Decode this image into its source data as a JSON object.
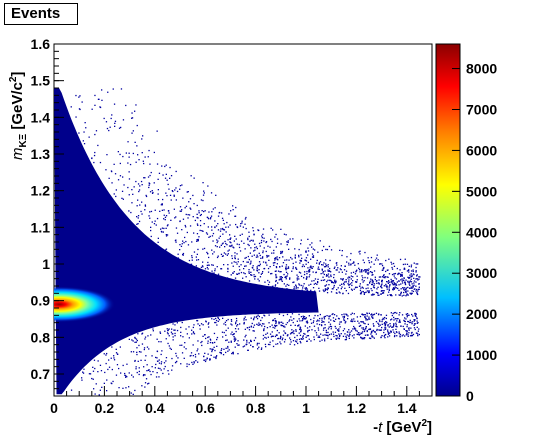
{
  "chart_data": {
    "type": "heatmap",
    "title": "Events",
    "xlabel": "-t [GeV^2]",
    "ylabel": "m_KΞ [GeV/c^2]",
    "xlim": [
      0,
      1.5
    ],
    "ylim": [
      0.64,
      1.6
    ],
    "x_ticks": [
      "0",
      "0.2",
      "0.4",
      "0.6",
      "0.8",
      "1",
      "1.2",
      "1.4"
    ],
    "x_tick_values": [
      0,
      0.2,
      0.4,
      0.6,
      0.8,
      1.0,
      1.2,
      1.4
    ],
    "y_ticks": [
      "0.7",
      "0.8",
      "0.9",
      "1",
      "1.1",
      "1.2",
      "1.3",
      "1.4",
      "1.5",
      "1.6"
    ],
    "y_tick_values": [
      0.7,
      0.8,
      0.9,
      1.0,
      1.1,
      1.2,
      1.3,
      1.4,
      1.5,
      1.6
    ],
    "z_range": [
      0,
      8600
    ],
    "colorbar_ticks": [
      "0",
      "1000",
      "2000",
      "3000",
      "4000",
      "5000",
      "6000",
      "7000",
      "8000"
    ],
    "colorbar_tick_values": [
      0,
      1000,
      2000,
      3000,
      4000,
      5000,
      6000,
      7000,
      8000
    ],
    "colormap": [
      "#00008b",
      "#0000ff",
      "#00bfff",
      "#7fff7f",
      "#ffff00",
      "#ff7f00",
      "#ff0000",
      "#8b0000"
    ],
    "phase_space_upper_edge_y": 1.48,
    "peak": {
      "x": 0.02,
      "y": 0.89,
      "value": 8600
    },
    "grid": false,
    "legend": "colorbar-right"
  }
}
